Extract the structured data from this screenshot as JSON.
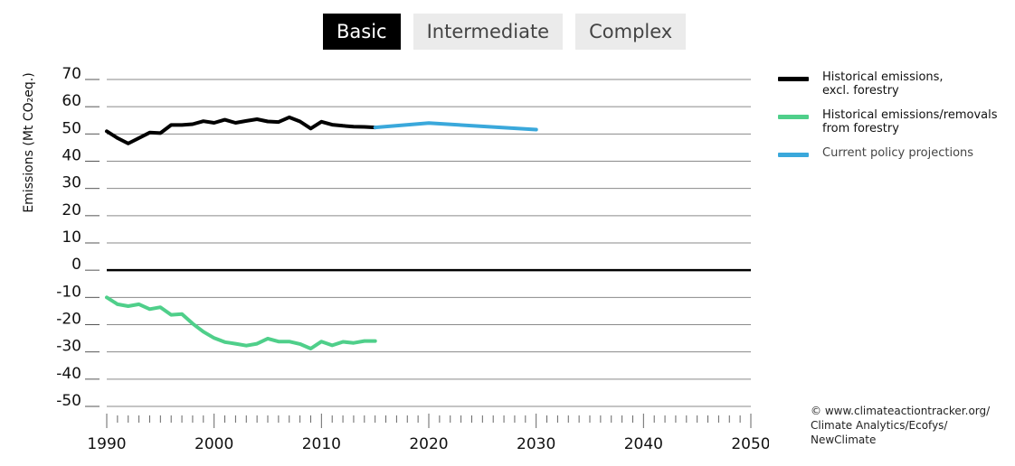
{
  "tabs": [
    {
      "label": "Basic",
      "active": true
    },
    {
      "label": "Intermediate",
      "active": false
    },
    {
      "label": "Complex",
      "active": false
    }
  ],
  "credit": "© www.climateactiontracker.org/\nClimate Analytics/Ecofys/\nNewClimate",
  "chart_data": {
    "type": "line",
    "ylabel": "Emissions (Mt CO₂eq.)",
    "xlim": [
      1990,
      2050
    ],
    "ylim": [
      -50,
      70
    ],
    "yticks": [
      70,
      60,
      50,
      40,
      30,
      20,
      10,
      0,
      -10,
      -20,
      -30,
      -40,
      -50
    ],
    "xticks": [
      1990,
      2000,
      2010,
      2020,
      2030,
      2040,
      2050
    ],
    "grid": true,
    "legend_position": "right",
    "series": [
      {
        "name": "Historical emissions,\nexcl. forestry",
        "color": "#000000",
        "x": [
          1990,
          1991,
          1992,
          1993,
          1994,
          1995,
          1996,
          1997,
          1998,
          1999,
          2000,
          2001,
          2002,
          2003,
          2004,
          2005,
          2006,
          2007,
          2008,
          2009,
          2010,
          2011,
          2012,
          2013,
          2014,
          2015
        ],
        "values": [
          51,
          48.5,
          46.5,
          48.5,
          50.5,
          50.3,
          53.3,
          53.3,
          53.6,
          54.7,
          54.1,
          55.2,
          54.1,
          54.8,
          55.4,
          54.6,
          54.4,
          56.1,
          54.6,
          52,
          54.5,
          53.4,
          53,
          52.7,
          52.6,
          52.4
        ]
      },
      {
        "name": "Historical emissions/removals\nfrom forestry",
        "color": "#4fcf8a",
        "x": [
          1990,
          1991,
          1992,
          1993,
          1994,
          1995,
          1996,
          1997,
          1998,
          1999,
          2000,
          2001,
          2002,
          2003,
          2004,
          2005,
          2006,
          2007,
          2008,
          2009,
          2010,
          2011,
          2012,
          2013,
          2014,
          2015
        ],
        "values": [
          -10,
          -12.5,
          -13.2,
          -12.5,
          -14.3,
          -13.6,
          -16.4,
          -16.1,
          -19.6,
          -22.6,
          -24.9,
          -26.4,
          -27,
          -27.7,
          -27,
          -25.1,
          -26.2,
          -26.2,
          -27.1,
          -28.8,
          -26.2,
          -27.6,
          -26.3,
          -26.7,
          -26,
          -26
        ]
      },
      {
        "name": "Current policy projections",
        "color": "#3aa8db",
        "x": [
          2015,
          2020,
          2030
        ],
        "values": [
          52.4,
          54,
          51.6
        ]
      }
    ]
  }
}
